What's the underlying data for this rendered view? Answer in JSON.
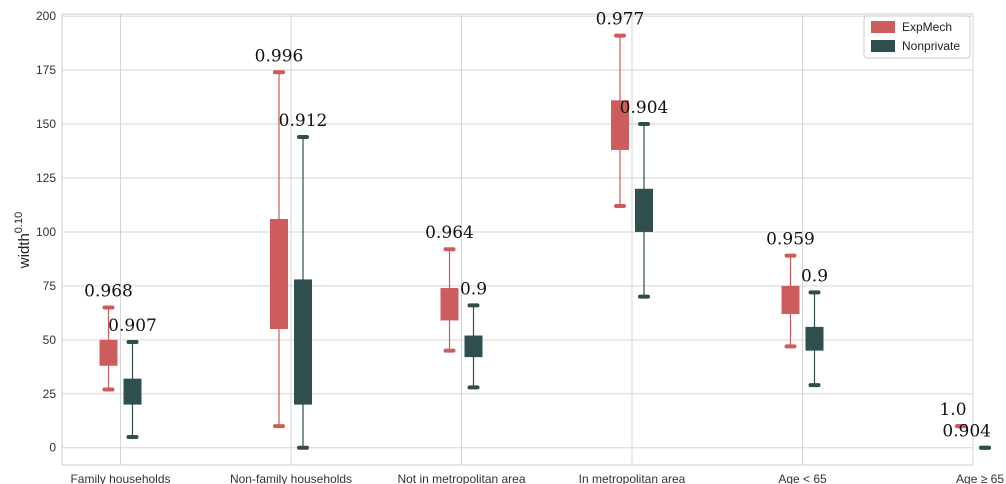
{
  "chart_data": {
    "type": "box",
    "ylabel": "width",
    "ylabel_sup": "0.10",
    "ylim": [
      -8,
      201
    ],
    "yticks": [
      0,
      25,
      50,
      75,
      100,
      125,
      150,
      175,
      200
    ],
    "grid": true,
    "legend_position": "top-right",
    "categories": [
      "Family households",
      "Non-family households",
      "Not in metropolitan area",
      "In metropolitan area",
      "Age < 65",
      "Age ≥ 65"
    ],
    "series": [
      {
        "name": "ExpMech",
        "color": "#cd5c5c",
        "boxes": [
          {
            "whisker_low": 27,
            "q1": 38,
            "median": 44,
            "q3": 50,
            "whisker_high": 65,
            "annotation": "0.968"
          },
          {
            "whisker_low": 10,
            "q1": 55,
            "median": 80,
            "q3": 106,
            "whisker_high": 174,
            "annotation": "0.996"
          },
          {
            "whisker_low": 45,
            "q1": 59,
            "median": 66,
            "q3": 74,
            "whisker_high": 92,
            "annotation": "0.964"
          },
          {
            "whisker_low": 112,
            "q1": 138,
            "median": 149,
            "q3": 161,
            "whisker_high": 191,
            "annotation": "0.977"
          },
          {
            "whisker_low": 47,
            "q1": 62,
            "median": 68,
            "q3": 75,
            "whisker_high": 89,
            "annotation": "0.959"
          },
          {
            "whisker_low": 10,
            "q1": 10,
            "median": 10,
            "q3": 10,
            "whisker_high": 10,
            "annotation": "1.0"
          }
        ]
      },
      {
        "name": "Nonprivate",
        "color": "#2f4f4f",
        "boxes": [
          {
            "whisker_low": 5,
            "q1": 20,
            "median": 26,
            "q3": 32,
            "whisker_high": 49,
            "annotation": "0.907"
          },
          {
            "whisker_low": 0,
            "q1": 20,
            "median": 49,
            "q3": 78,
            "whisker_high": 144,
            "annotation": "0.912"
          },
          {
            "whisker_low": 28,
            "q1": 42,
            "median": 47,
            "q3": 52,
            "whisker_high": 66,
            "annotation": "0.9"
          },
          {
            "whisker_low": 70,
            "q1": 100,
            "median": 110,
            "q3": 120,
            "whisker_high": 150,
            "annotation": "0.904"
          },
          {
            "whisker_low": 29,
            "q1": 45,
            "median": 50,
            "q3": 56,
            "whisker_high": 72,
            "annotation": "0.9"
          },
          {
            "whisker_low": 0,
            "q1": 0,
            "median": 0,
            "q3": 0,
            "whisker_high": 0,
            "annotation": "0.904"
          }
        ]
      }
    ]
  }
}
